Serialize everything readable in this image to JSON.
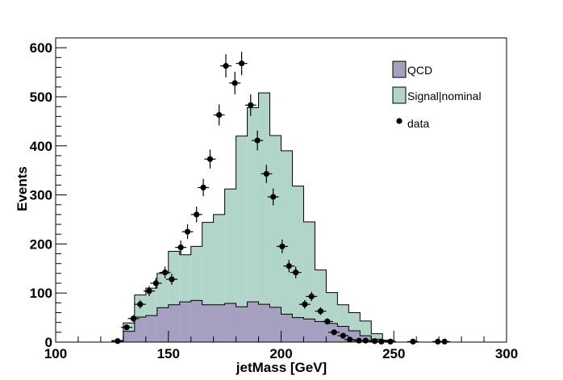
{
  "chart_data": {
    "type": "bar",
    "style": "stacked-histogram-with-data-points",
    "xlabel": "jetMass [GeV]",
    "ylabel": "Events",
    "xlim": [
      100,
      300
    ],
    "ylim": [
      0,
      620
    ],
    "bin_width": 5,
    "x_ticks": [
      100,
      150,
      200,
      250,
      300
    ],
    "y_ticks": [
      0,
      100,
      200,
      300,
      400,
      500,
      600
    ],
    "grid": false,
    "legend_position": "top-right",
    "bin_edges": [
      125,
      130,
      135,
      140,
      145,
      150,
      155,
      160,
      165,
      170,
      175,
      180,
      185,
      190,
      195,
      200,
      205,
      210,
      215,
      220,
      225,
      230,
      235,
      240,
      245,
      250
    ],
    "series": [
      {
        "name": "QCD",
        "kind": "stacked-fill",
        "color": "#a59fc0",
        "values": [
          3,
          22,
          51,
          54,
          70,
          76,
          82,
          85,
          76,
          76,
          79,
          72,
          82,
          77,
          71,
          57,
          50,
          47,
          42,
          38,
          32,
          23,
          13,
          6,
          2
        ]
      },
      {
        "name": "Signal|nominal",
        "kind": "stacked-fill",
        "color": "#b2d5c9",
        "values": [
          0,
          17,
          45,
          56,
          70,
          109,
          96,
          110,
          168,
          184,
          233,
          348,
          396,
          431,
          350,
          333,
          268,
          198,
          105,
          63,
          44,
          37,
          30,
          11,
          2
        ]
      },
      {
        "name": "data",
        "kind": "points-with-errors",
        "color": "#000000",
        "points": [
          {
            "x": 127.5,
            "y": 2
          },
          {
            "x": 131.5,
            "y": 30
          },
          {
            "x": 134.5,
            "y": 48
          },
          {
            "x": 137.5,
            "y": 77
          },
          {
            "x": 141.5,
            "y": 104
          },
          {
            "x": 144.5,
            "y": 120
          },
          {
            "x": 148.5,
            "y": 142
          },
          {
            "x": 151.5,
            "y": 128
          },
          {
            "x": 155.5,
            "y": 193
          },
          {
            "x": 158.5,
            "y": 225
          },
          {
            "x": 162.5,
            "y": 260
          },
          {
            "x": 165.5,
            "y": 315
          },
          {
            "x": 168.5,
            "y": 373
          },
          {
            "x": 172.5,
            "y": 463
          },
          {
            "x": 175.5,
            "y": 563
          },
          {
            "x": 179.5,
            "y": 528
          },
          {
            "x": 182.5,
            "y": 568
          },
          {
            "x": 186.5,
            "y": 483
          },
          {
            "x": 189.5,
            "y": 411
          },
          {
            "x": 193.5,
            "y": 343
          },
          {
            "x": 196.5,
            "y": 296
          },
          {
            "x": 200.5,
            "y": 195
          },
          {
            "x": 203.5,
            "y": 155
          },
          {
            "x": 206.5,
            "y": 142
          },
          {
            "x": 210.5,
            "y": 77
          },
          {
            "x": 213.5,
            "y": 93
          },
          {
            "x": 217.5,
            "y": 63
          },
          {
            "x": 220.5,
            "y": 42
          },
          {
            "x": 223.5,
            "y": 20
          },
          {
            "x": 227.5,
            "y": 13
          },
          {
            "x": 230.5,
            "y": 5
          },
          {
            "x": 234.5,
            "y": 3
          },
          {
            "x": 237.5,
            "y": 3
          },
          {
            "x": 241.5,
            "y": 2
          },
          {
            "x": 244.5,
            "y": 1
          },
          {
            "x": 248.5,
            "y": 1
          },
          {
            "x": 258.5,
            "y": 1
          },
          {
            "x": 269.5,
            "y": 1
          },
          {
            "x": 272.5,
            "y": 1
          }
        ]
      }
    ]
  }
}
